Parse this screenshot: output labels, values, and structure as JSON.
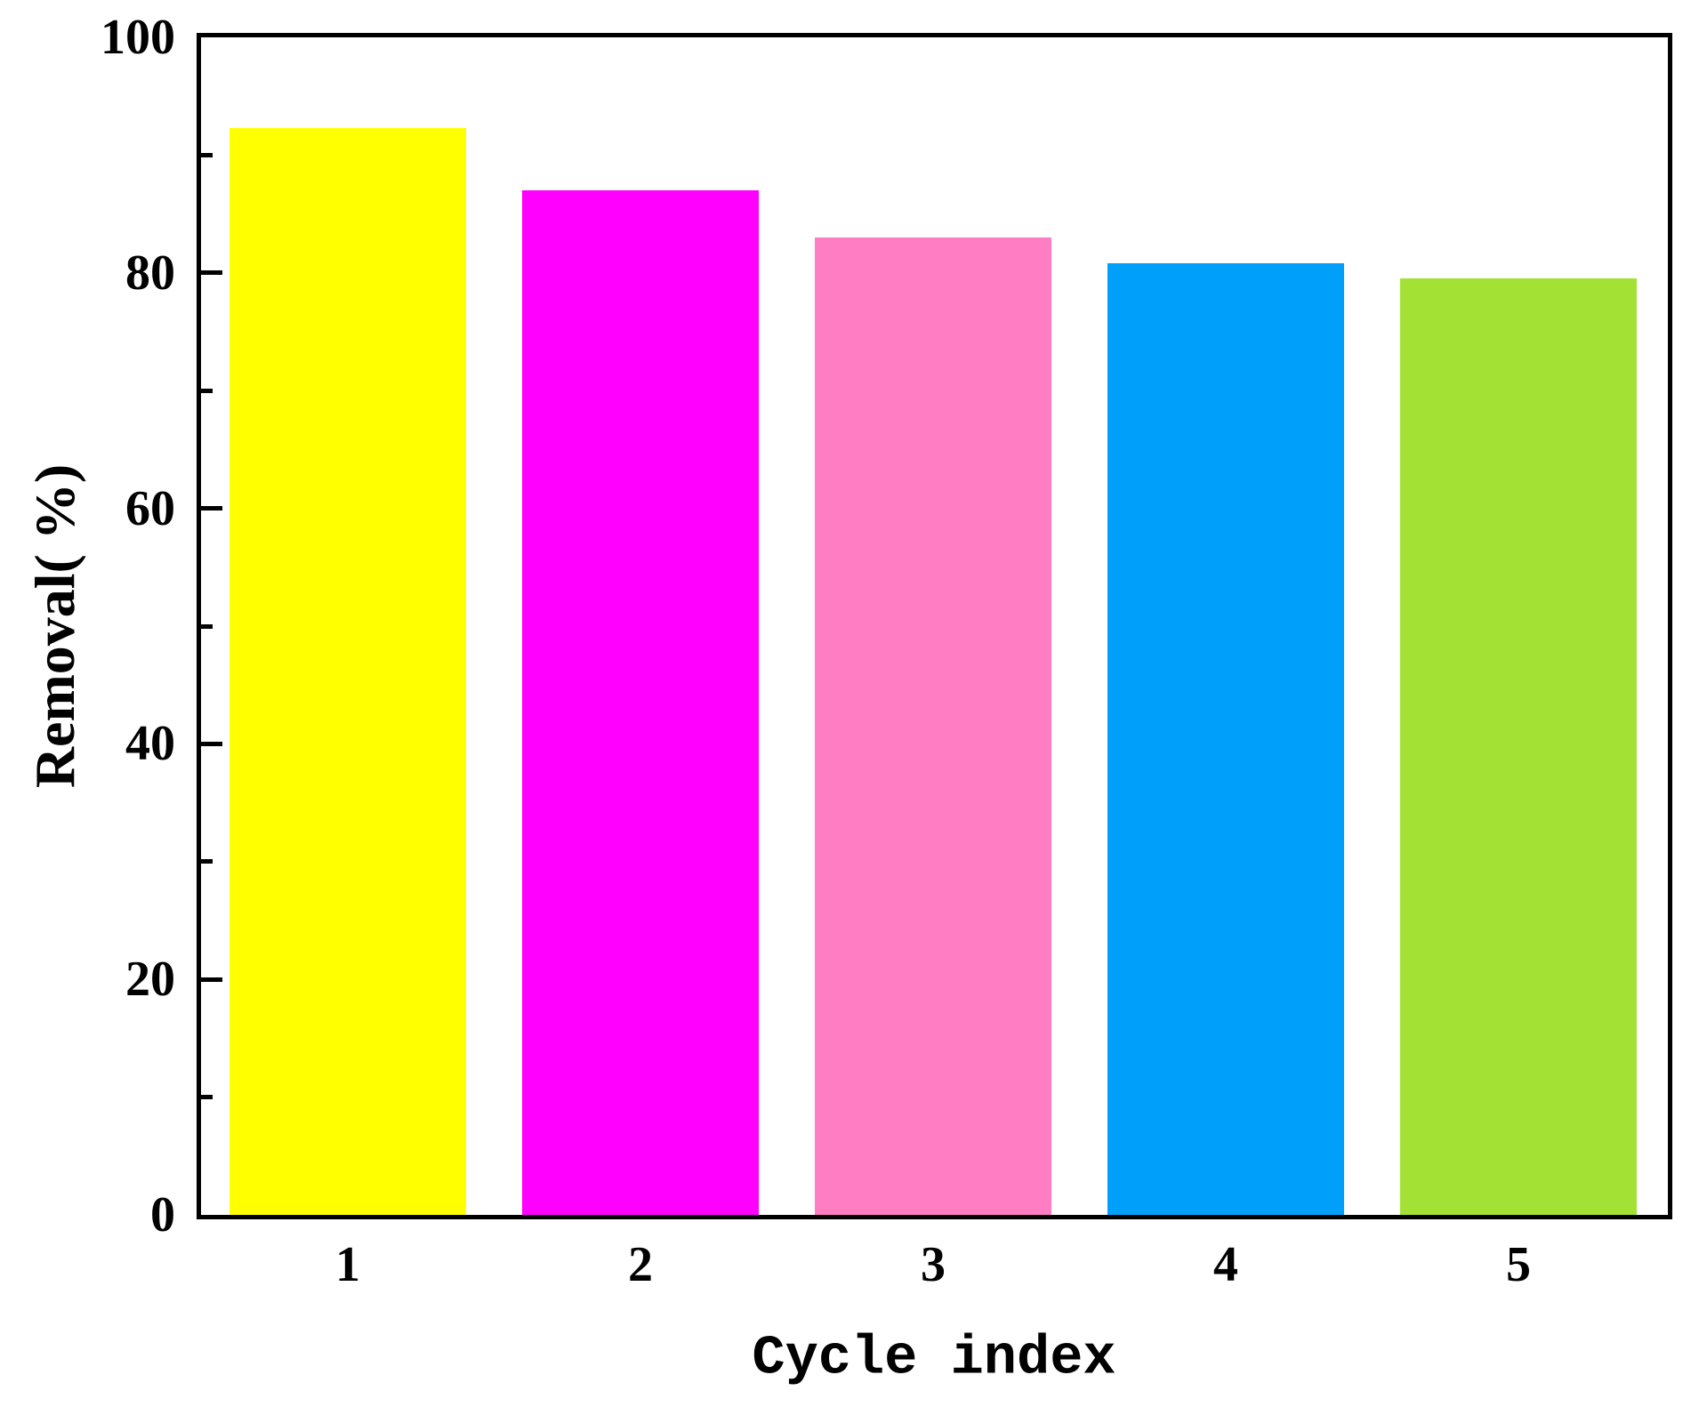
{
  "chart_data": {
    "type": "bar",
    "title": "",
    "xlabel": "Cycle index",
    "ylabel": "Removal( %)",
    "categories": [
      "1",
      "2",
      "3",
      "4",
      "5"
    ],
    "values": [
      92.3,
      87.0,
      83.0,
      80.8,
      79.5
    ],
    "bar_colors": [
      "#ffff00",
      "#ff00ff",
      "#ff7ec3",
      "#00a0fa",
      "#a3e135"
    ],
    "ylim": [
      0,
      100
    ],
    "ytick_major": [
      0,
      20,
      40,
      60,
      80,
      100
    ],
    "ytick_minor": [
      10,
      30,
      50,
      70,
      90
    ],
    "grid": "off",
    "legend": "none",
    "axis_color": "#000000",
    "background_color": "#ffffff",
    "frame": "full-box",
    "tick_direction": "in"
  }
}
